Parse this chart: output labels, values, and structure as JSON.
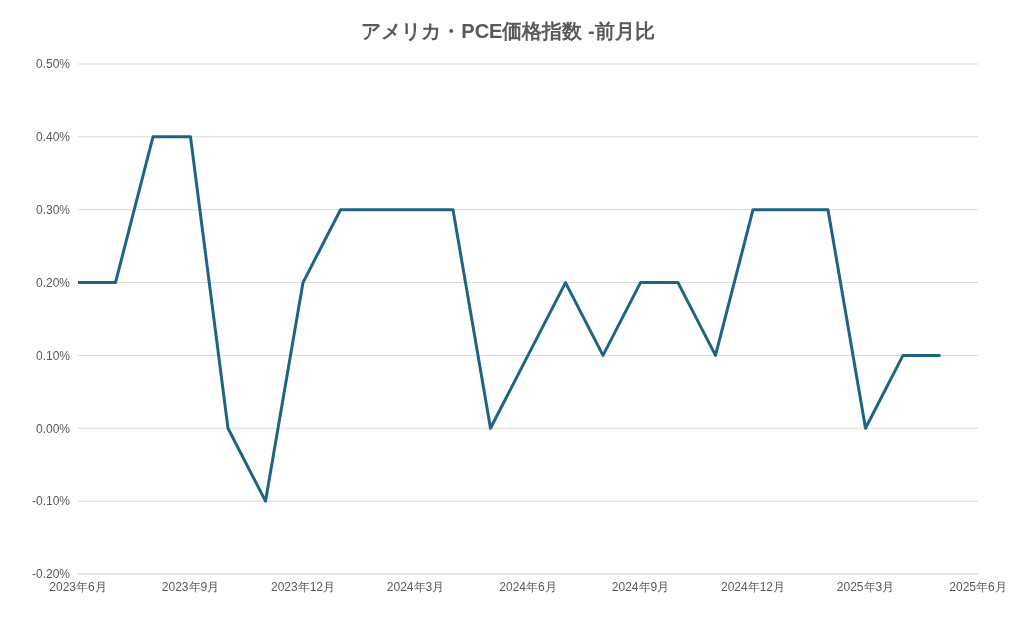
{
  "chart_data": {
    "type": "line",
    "title": "アメリカ・PCE価格指数 -前月比",
    "x": [
      "2023-06",
      "2023-07",
      "2023-08",
      "2023-09",
      "2023-10",
      "2023-11",
      "2023-12",
      "2024-01",
      "2024-02",
      "2024-03",
      "2024-04",
      "2024-05",
      "2024-06",
      "2024-07",
      "2024-08",
      "2024-09",
      "2024-10",
      "2024-11",
      "2024-12",
      "2025-01",
      "2025-02",
      "2025-03",
      "2025-04",
      "2025-05"
    ],
    "series": [
      {
        "color": "#1f6483",
        "values": [
          0.2,
          0.2,
          0.4,
          0.4,
          0.0,
          -0.1,
          0.2,
          0.3,
          0.3,
          0.3,
          0.3,
          0.0,
          0.1,
          0.2,
          0.1,
          0.2,
          0.2,
          0.1,
          0.3,
          0.3,
          0.3,
          0.0,
          0.1,
          0.1
        ]
      }
    ],
    "xlim": [
      "2023-06",
      "2025-06"
    ],
    "xticks": [
      {
        "value": "2023-06",
        "label": "2023年6月"
      },
      {
        "value": "2023-09",
        "label": "2023年9月"
      },
      {
        "value": "2023-12",
        "label": "2023年12月"
      },
      {
        "value": "2024-03",
        "label": "2024年3月"
      },
      {
        "value": "2024-06",
        "label": "2024年6月"
      },
      {
        "value": "2024-09",
        "label": "2024年9月"
      },
      {
        "value": "2024-12",
        "label": "2024年12月"
      },
      {
        "value": "2025-03",
        "label": "2025年3月"
      },
      {
        "value": "2025-06",
        "label": "2025年6月"
      }
    ],
    "ylim": [
      -0.2,
      0.5
    ],
    "yticks": [
      {
        "value": -0.2,
        "label": "-0.20%"
      },
      {
        "value": -0.1,
        "label": "-0.10%"
      },
      {
        "value": 0,
        "label": "0.00%"
      },
      {
        "value": 0.1,
        "label": "0.10%"
      },
      {
        "value": 0.2,
        "label": "0.20%"
      },
      {
        "value": 0.3,
        "label": "0.30%"
      },
      {
        "value": 0.4,
        "label": "0.40%"
      },
      {
        "value": 0.5,
        "label": "0.50%"
      }
    ],
    "grid": "y",
    "legend": false,
    "marker": "none",
    "line_style": "solid"
  }
}
